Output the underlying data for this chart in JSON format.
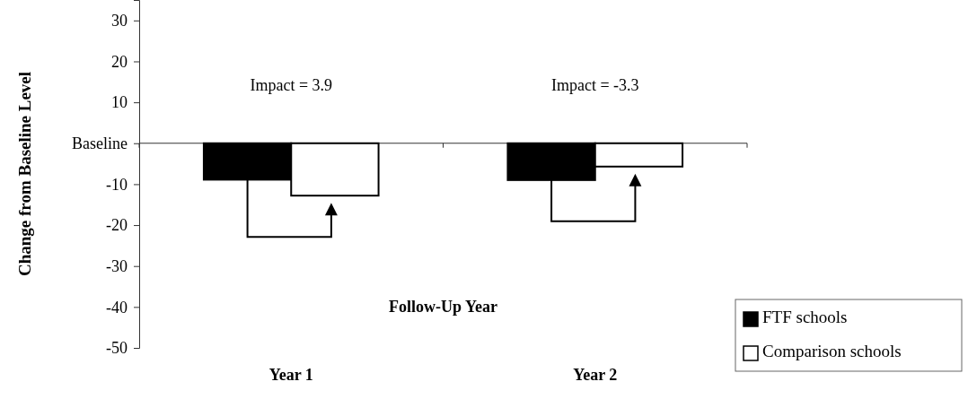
{
  "chart_data": {
    "type": "bar",
    "ylabel": "Change from Baseline Level",
    "xlabel": "Follow-Up Year",
    "categories": [
      "Year 1",
      "Year 2"
    ],
    "series": [
      {
        "name": "FTF schools",
        "color": "#000000",
        "values": [
          -8.9,
          -9.0
        ]
      },
      {
        "name": "Comparison schools",
        "color": "#ffffff",
        "values": [
          -12.8,
          -5.7
        ]
      }
    ],
    "ylim": [
      -50,
      35
    ],
    "yticks": [
      -50,
      -40,
      -30,
      -20,
      -10,
      {
        "value": 0,
        "label": "Baseline"
      },
      10,
      20,
      30
    ],
    "annotations": [
      "Impact = 3.9",
      "Impact = -3.3"
    ],
    "legend": "bottom right"
  }
}
